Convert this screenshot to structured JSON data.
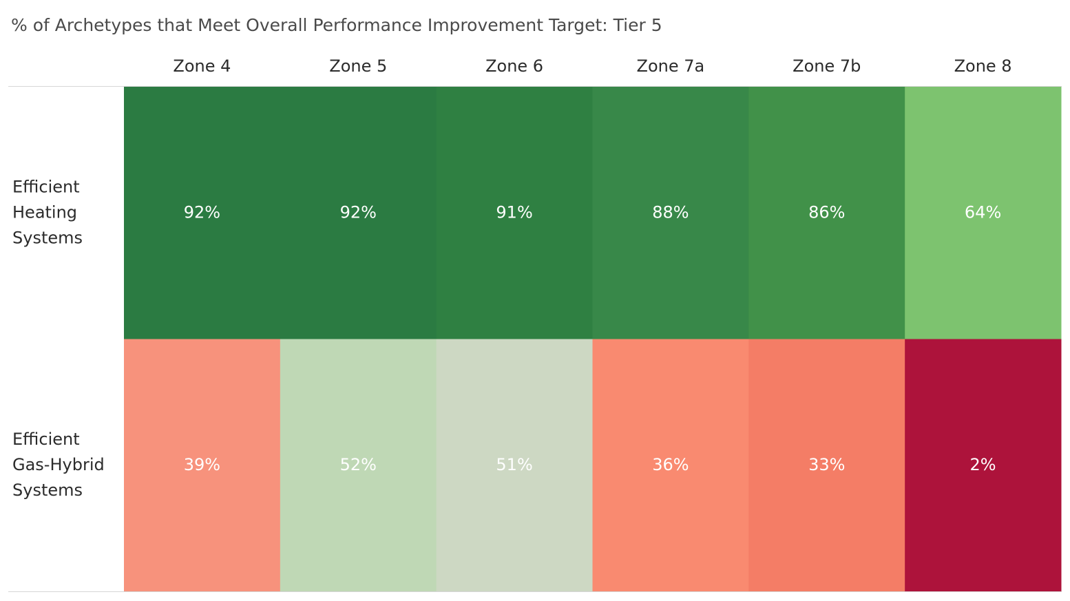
{
  "chart_data": {
    "type": "heatmap",
    "title": "% of Archetypes that Meet Overall Performance Improvement Target: Tier 5",
    "columns": [
      "Zone 4",
      "Zone 5",
      "Zone 6",
      "Zone 7a",
      "Zone 7b",
      "Zone 8"
    ],
    "rows": [
      {
        "label": [
          "Efficient",
          "Heating",
          "Systems"
        ],
        "values": [
          92,
          92,
          91,
          88,
          86,
          64
        ],
        "value_labels": [
          "92%",
          "92%",
          "91%",
          "88%",
          "86%",
          "64%"
        ],
        "colors": [
          "#2b7b42",
          "#2b7b42",
          "#2f8042",
          "#388849",
          "#419149",
          "#7dc36f"
        ]
      },
      {
        "label": [
          "Efficient",
          "Gas-Hybrid",
          "Systems"
        ],
        "values": [
          39,
          52,
          51,
          36,
          33,
          2
        ],
        "value_labels": [
          "39%",
          "52%",
          "51%",
          "36%",
          "33%",
          "2%"
        ],
        "colors": [
          "#f7927c",
          "#bfd8b5",
          "#cdd8c3",
          "#f98a70",
          "#f47d66",
          "#ad133b"
        ]
      }
    ],
    "legend": "none",
    "grid": false
  }
}
